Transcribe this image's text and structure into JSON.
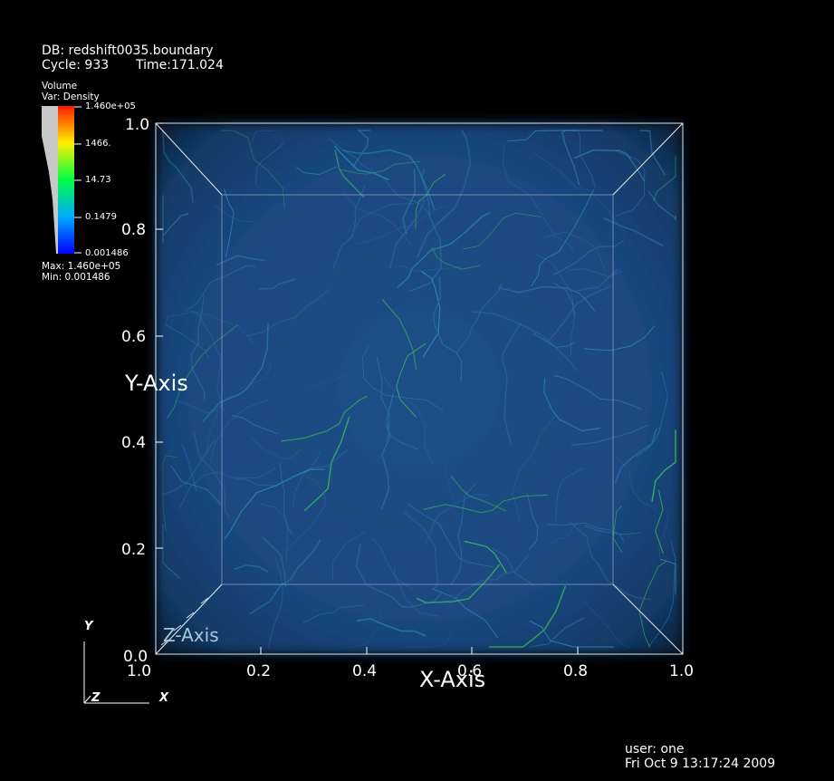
{
  "header": {
    "db": "DB: redshift0035.boundary",
    "cycle": "Cycle: 933",
    "time": "Time:171.024"
  },
  "legend": {
    "plot_type": "Volume",
    "variable": "Var: Density",
    "ticks": [
      "1.460e+05",
      "1466.",
      "14.73",
      "0.1479",
      "0.001486"
    ],
    "max": "Max: 1.460e+05",
    "min": "Min: 0.001486",
    "colors": [
      "#ff1a00",
      "#ffee00",
      "#00ff44",
      "#00aaff",
      "#0000ff"
    ]
  },
  "chart_data": {
    "type": "heatmap",
    "title": "",
    "xlabel": "X-Axis",
    "ylabel": "Y-Axis",
    "zlabel": "Z-Axis",
    "x_ticks": [
      "1.0",
      "0.2",
      "0.4",
      "0.6",
      "0.8",
      "1.0"
    ],
    "y_ticks": [
      "0.0",
      "0.2",
      "0.4",
      "0.6",
      "0.8",
      "1.0"
    ],
    "xlim": [
      0,
      1
    ],
    "ylim": [
      0,
      1
    ],
    "variable": "Density",
    "value_range": [
      0.001486,
      146000
    ],
    "scale": "log"
  },
  "triad": {
    "x": "X",
    "y": "Y",
    "z": "Z"
  },
  "footer": {
    "user": "user: one",
    "date": "Fri Oct  9 13:17:24 2009"
  }
}
